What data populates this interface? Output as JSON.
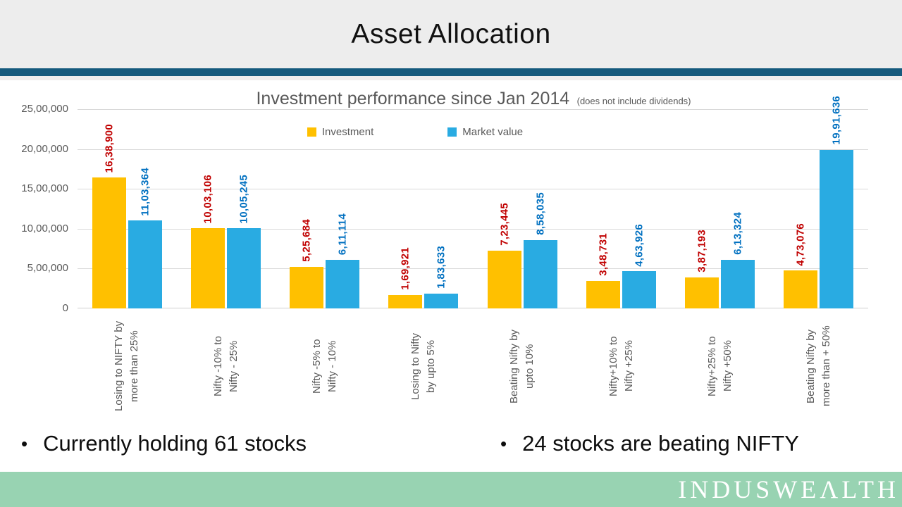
{
  "slide": {
    "title": "Asset Allocation"
  },
  "chart_data": {
    "type": "bar",
    "title": "Investment performance since Jan 2014",
    "title_note": "(does not include dividends)",
    "grid": true,
    "legend_position": "top-inside",
    "ylim": [
      0,
      2500000
    ],
    "y_ticks": [
      "25,00,000",
      "20,00,000",
      "15,00,000",
      "10,00,000",
      "5,00,000",
      "0"
    ],
    "categories": [
      "Losing to NIFTY by\nmore than 25%",
      "Nifty -10% to\nNifty - 25%",
      "Nifty -5% to\nNifty - 10%",
      "Losing to Nifty\nby upto 5%",
      "Beating Nifty by\nupto 10%",
      "Nifty+10% to\nNifty +25%",
      "Nifty+25% to\nNifty +50%",
      "Beating Nifty by\nmore than + 50%"
    ],
    "series": [
      {
        "name": "Investment",
        "color": "#FFC000",
        "label_color": "#C00000",
        "values": [
          1638900,
          1003106,
          525684,
          169921,
          723445,
          348731,
          387193,
          473076
        ],
        "labels": [
          "16,38,900",
          "10,03,106",
          "5,25,684",
          "1,69,921",
          "7,23,445",
          "3,48,731",
          "3,87,193",
          "4,73,076"
        ]
      },
      {
        "name": "Market value",
        "color": "#29ABE2",
        "label_color": "#0070C0",
        "values": [
          1103364,
          1005245,
          611114,
          183633,
          858035,
          463926,
          613324,
          1991636
        ],
        "labels": [
          "11,03,364",
          "10,05,245",
          "6,11,114",
          "1,83,633",
          "8,58,035",
          "4,63,926",
          "6,13,324",
          "19,91,636"
        ]
      }
    ]
  },
  "bullets": [
    {
      "marker": "•",
      "text": "Currently holding 61 stocks"
    },
    {
      "marker": "•",
      "text": "24 stocks are beating NIFTY"
    }
  ],
  "footer": {
    "logo_pre": "INDUSWE",
    "logo_a": "Λ",
    "logo_post": "LTH",
    "bg_color": "#98D3B2"
  },
  "colors": {
    "header_bg": "#EDEDED",
    "divider": "#155A7D",
    "gridline": "#D9D9D9",
    "axis_text": "#595959"
  }
}
